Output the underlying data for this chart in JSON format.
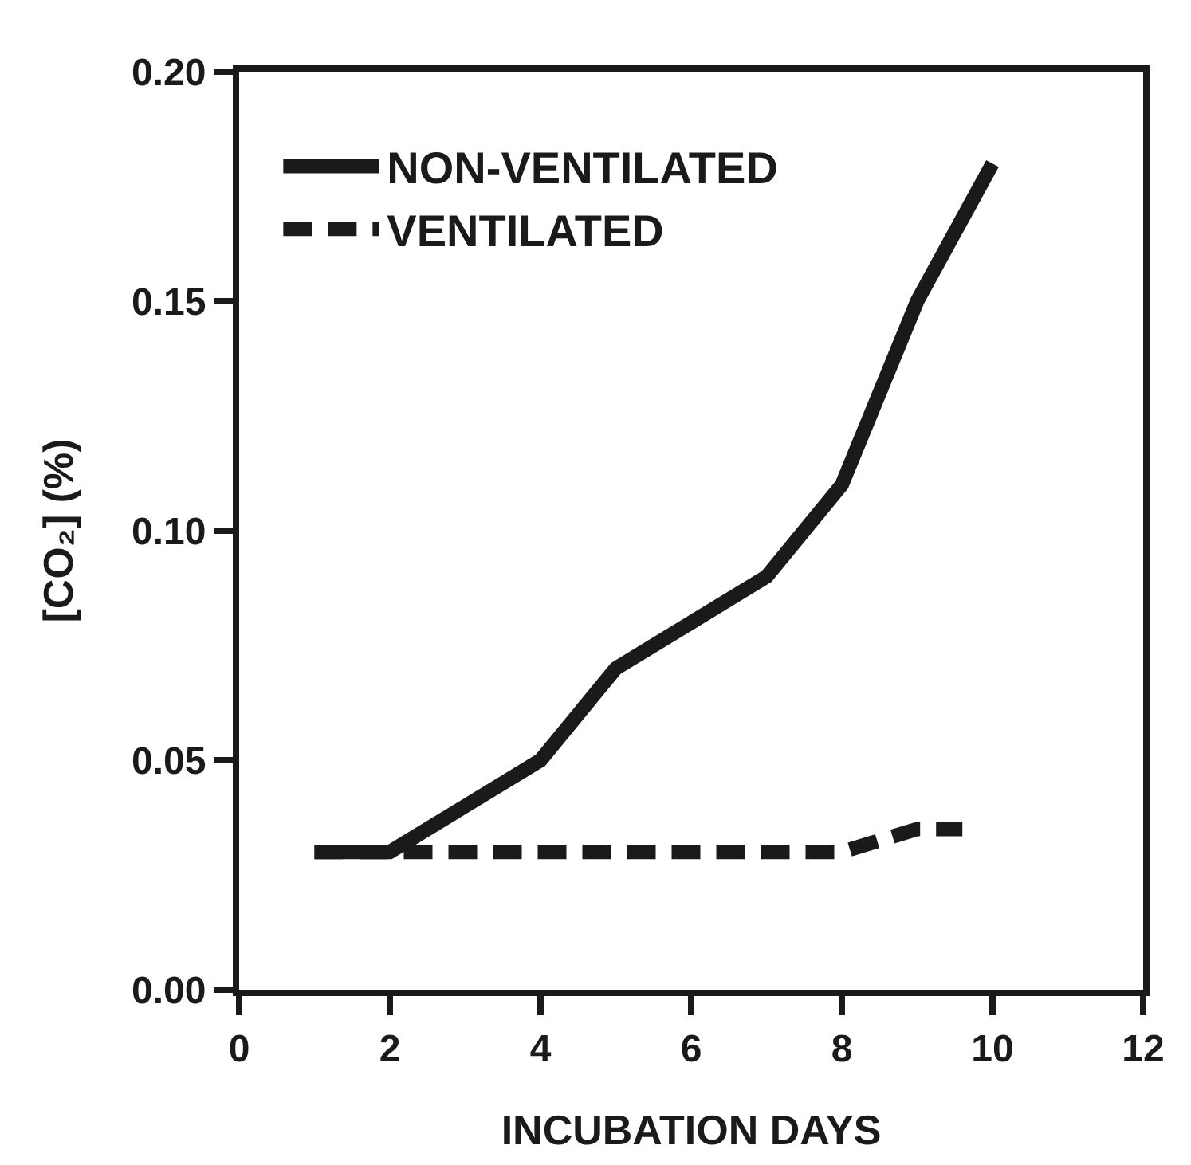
{
  "chart_data": {
    "type": "line",
    "xlabel": "INCUBATION DAYS",
    "ylabel": "[CO₂] (%)",
    "xlim": [
      0,
      12
    ],
    "xticks": [
      0,
      2,
      4,
      6,
      8,
      10,
      12
    ],
    "ylim": [
      0,
      0.2
    ],
    "yticks": [
      {
        "value": 0,
        "label": "0.00"
      },
      0.05,
      {
        "value": 0.1,
        "label": "0.10"
      },
      0.15,
      {
        "value": 0.2,
        "label": "0.20"
      }
    ],
    "legend": "top left",
    "grid": false,
    "marker": "none",
    "series": [
      {
        "name": "NON-VENTILATED",
        "color": "#1a1a1a",
        "line_style": "solid",
        "x": [
          1,
          2,
          3,
          4,
          5,
          6,
          7,
          8,
          9,
          10
        ],
        "values": [
          0.03,
          0.03,
          0.04,
          0.05,
          0.07,
          0.08,
          0.09,
          0.11,
          0.15,
          0.18
        ]
      },
      {
        "name": "VENTILATED",
        "color": "#1a1a1a",
        "line_style": "dashed",
        "x": [
          1,
          2,
          3,
          4,
          5,
          6,
          7,
          8,
          9,
          9.6
        ],
        "values": [
          0.03,
          0.03,
          0.03,
          0.03,
          0.03,
          0.03,
          0.03,
          0.03,
          0.035,
          0.035
        ]
      }
    ]
  }
}
